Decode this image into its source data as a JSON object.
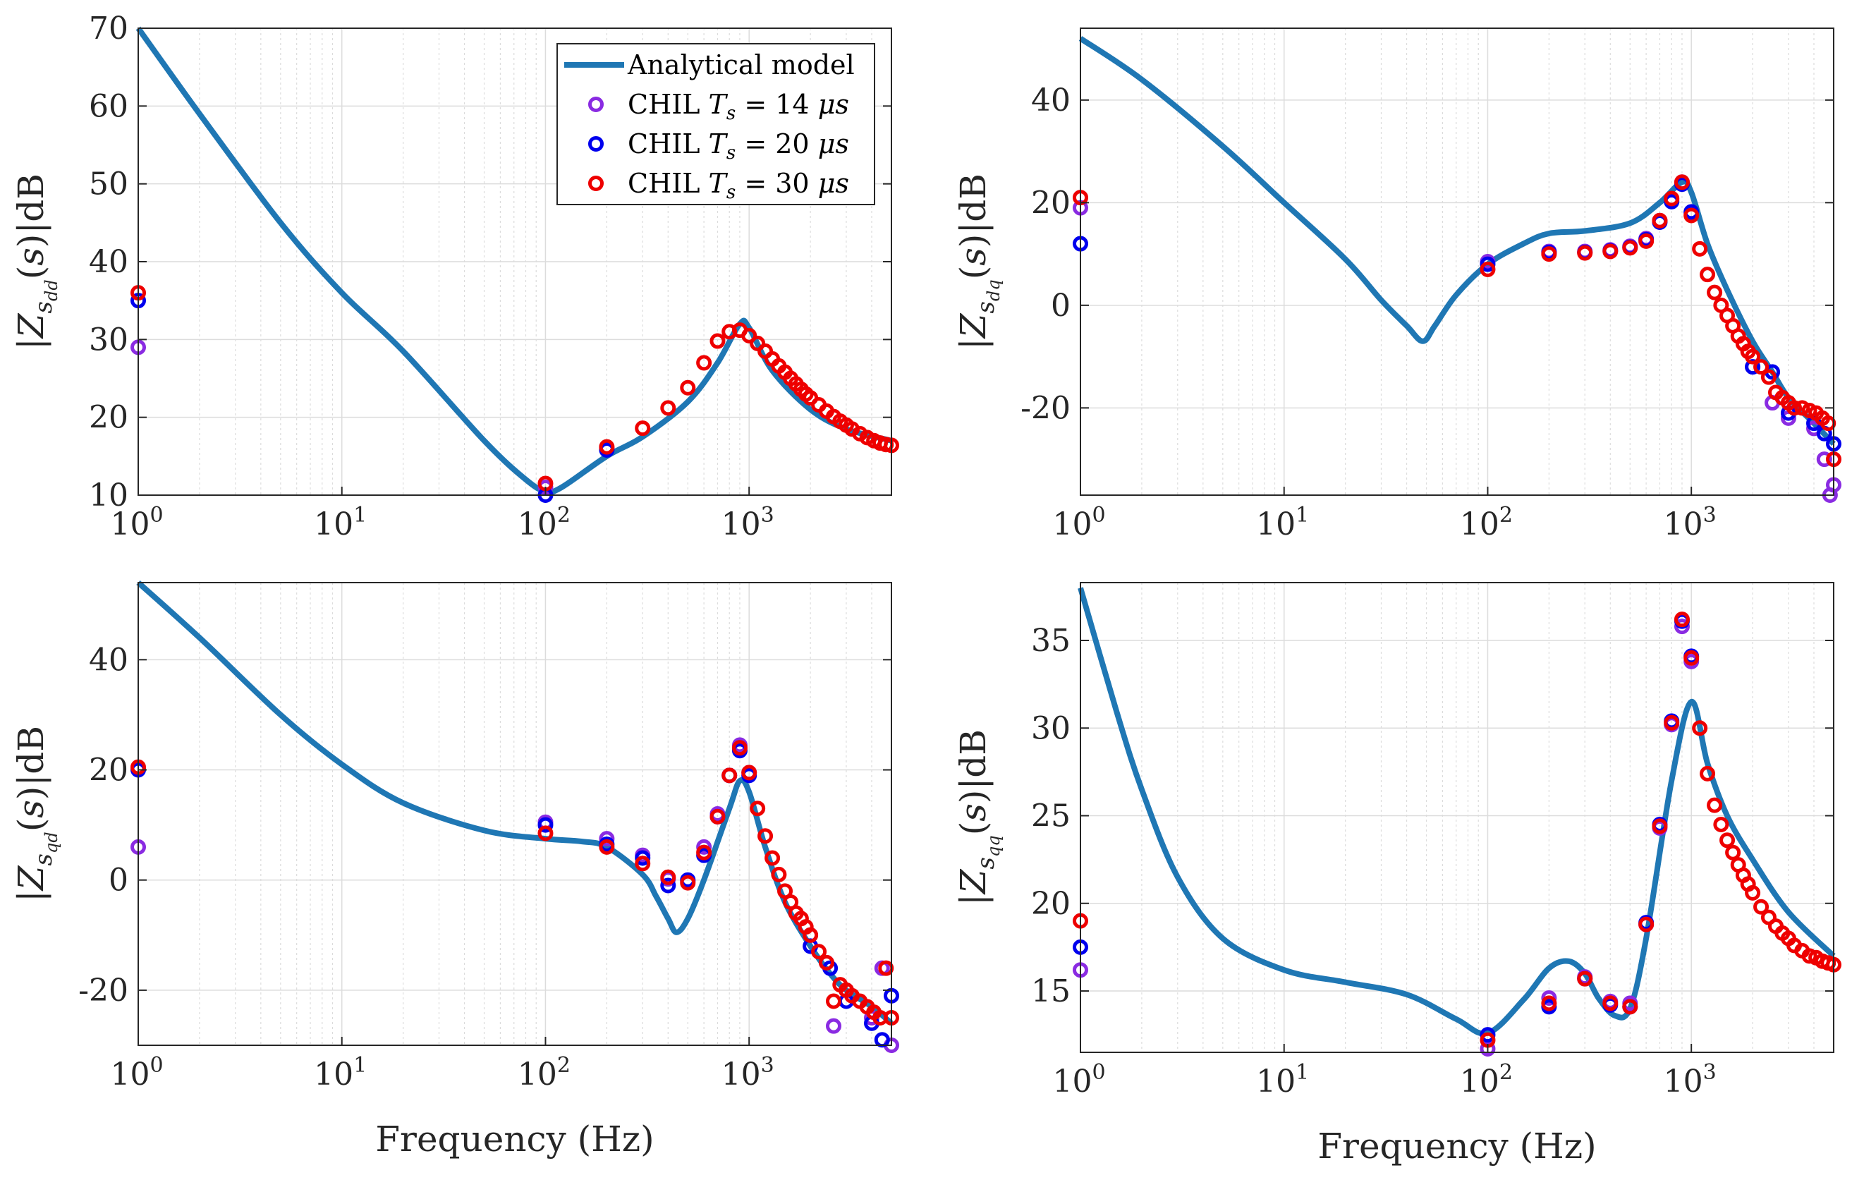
{
  "colors": {
    "model": "#1f77b4",
    "ts14": "#8a2be2",
    "ts20": "#0000ee",
    "ts30": "#ee0000",
    "grid": "#dcdcdc",
    "axis": "#262626"
  },
  "legend": {
    "model": "Analytical model",
    "ts14": "CHIL T_s = 14 μs",
    "ts20": "CHIL T_s = 20 μs",
    "ts30": "CHIL T_s = 30 μs"
  },
  "chart_data": [
    {
      "type": "scatter",
      "panel": "top-left",
      "ylabel": "|Z_sdd(s)|dB",
      "xlabel": "",
      "xscale": "log",
      "xlim": [
        1,
        5000
      ],
      "ylim": [
        10,
        70
      ],
      "yticks": [
        10,
        20,
        30,
        40,
        50,
        60,
        70
      ],
      "grid": true,
      "legend_position": "top-right",
      "model_curve": {
        "name": "Analytical model",
        "x": [
          1,
          2,
          5,
          10,
          20,
          50,
          80,
          100,
          120,
          200,
          300,
          500,
          700,
          900,
          1000,
          1300,
          2000,
          3000,
          5000
        ],
        "y": [
          70,
          59,
          45,
          36,
          28.5,
          17,
          12,
          10.5,
          11,
          15,
          17.5,
          22,
          27,
          32,
          31.5,
          26,
          21,
          18.5,
          17
        ]
      },
      "series": [
        {
          "name": "CHIL T_s = 14 μs",
          "x": [
            1,
            100,
            200
          ],
          "y": [
            29,
            11,
            16
          ]
        },
        {
          "name": "CHIL T_s = 20 μs",
          "x": [
            1,
            100,
            200
          ],
          "y": [
            35,
            10,
            15.8
          ]
        },
        {
          "name": "CHIL T_s = 30 μs",
          "x": [
            1,
            100,
            200,
            300,
            400,
            500,
            600,
            700,
            800,
            900,
            1000,
            1100,
            1200,
            1300,
            1400,
            1500,
            1600,
            1700,
            1800,
            1900,
            2000,
            2200,
            2400,
            2600,
            2800,
            3000,
            3200,
            3500,
            3800,
            4100,
            4400,
            4700,
            5000
          ],
          "y": [
            36,
            11.5,
            16.2,
            18.6,
            21.2,
            23.8,
            27,
            29.8,
            31,
            31.2,
            30.5,
            29.5,
            28.5,
            27.5,
            26.6,
            25.8,
            25,
            24.3,
            23.6,
            23,
            22.5,
            21.6,
            20.8,
            20.1,
            19.5,
            19,
            18.5,
            17.9,
            17.4,
            17,
            16.7,
            16.5,
            16.4
          ]
        }
      ]
    },
    {
      "type": "scatter",
      "panel": "top-right",
      "ylabel": "|Z_sdq(s)|dB",
      "xlabel": "",
      "xscale": "log",
      "xlim": [
        1,
        5000
      ],
      "ylim": [
        -37,
        54
      ],
      "yticks": [
        -20,
        0,
        20,
        40
      ],
      "grid": true,
      "model_curve": {
        "name": "Analytical model",
        "x": [
          1,
          2,
          5,
          10,
          20,
          30,
          40,
          48,
          55,
          70,
          100,
          150,
          200,
          300,
          500,
          700,
          900,
          1000,
          1200,
          1500,
          2000,
          2500,
          3000,
          4000,
          5000
        ],
        "y": [
          52,
          44,
          31,
          20,
          9,
          1,
          -4,
          -7,
          -4,
          2,
          8,
          12,
          14,
          14.5,
          16,
          20,
          24,
          22,
          12,
          3,
          -7,
          -13,
          -18,
          -23,
          -27
        ]
      },
      "series": [
        {
          "name": "CHIL T_s = 14 μs",
          "x": [
            1,
            100,
            200,
            300,
            400,
            500,
            600,
            700,
            800,
            900,
            1000,
            2000,
            2500,
            3000,
            4000,
            4500,
            4800,
            5000
          ],
          "y": [
            19,
            8.5,
            10.5,
            10.5,
            10.8,
            11.5,
            13,
            16.5,
            20.5,
            24,
            18,
            -12,
            -19,
            -22,
            -24,
            -30,
            -37,
            -35
          ]
        },
        {
          "name": "CHIL T_s = 20 μs",
          "x": [
            1,
            100,
            200,
            300,
            400,
            500,
            600,
            700,
            800,
            900,
            1000,
            2000,
            2500,
            3000,
            4000,
            4500,
            5000
          ],
          "y": [
            12,
            8,
            10.3,
            10.3,
            10.6,
            11.3,
            12.8,
            16.2,
            20.2,
            23.6,
            18.2,
            -12,
            -13,
            -21,
            -23,
            -25,
            -27
          ]
        },
        {
          "name": "CHIL T_s = 30 μs",
          "x": [
            1,
            100,
            200,
            300,
            400,
            500,
            600,
            700,
            800,
            900,
            1000,
            1100,
            1200,
            1300,
            1400,
            1500,
            1600,
            1700,
            1800,
            1900,
            2000,
            2200,
            2400,
            2600,
            2800,
            3000,
            3200,
            3500,
            3800,
            4100,
            4400,
            4700,
            5000
          ],
          "y": [
            21,
            7,
            10,
            10.2,
            10.5,
            11.2,
            12.5,
            16.5,
            20.8,
            24,
            17.5,
            11,
            6,
            2.5,
            0,
            -2,
            -4,
            -6,
            -7.5,
            -9,
            -10,
            -12,
            -14,
            -17,
            -18,
            -19,
            -20,
            -20,
            -20.5,
            -21,
            -22,
            -23,
            -30
          ]
        }
      ]
    },
    {
      "type": "scatter",
      "panel": "bottom-left",
      "ylabel": "|Z_sqd(s)|dB",
      "xlabel": "Frequency (Hz)",
      "xscale": "log",
      "xlim": [
        1,
        5000
      ],
      "ylim": [
        -30,
        54
      ],
      "yticks": [
        -20,
        0,
        20,
        40
      ],
      "grid": true,
      "model_curve": {
        "name": "Analytical model",
        "x": [
          1,
          2,
          5,
          10,
          20,
          50,
          100,
          150,
          200,
          300,
          350,
          400,
          440,
          500,
          600,
          800,
          900,
          1000,
          1200,
          1500,
          2000,
          2500,
          3000,
          4000,
          5000
        ],
        "y": [
          54,
          44,
          30,
          21,
          14,
          9,
          7.5,
          7,
          6,
          1,
          -3,
          -7,
          -9.5,
          -7,
          0,
          13,
          18,
          16,
          6,
          -4,
          -12,
          -17,
          -20,
          -23,
          -26
        ]
      },
      "series": [
        {
          "name": "CHIL T_s = 14 μs",
          "x": [
            1,
            100,
            200,
            300,
            400,
            500,
            600,
            700,
            800,
            900,
            1000,
            2000,
            2400,
            2600,
            3000,
            4000,
            4500,
            5000
          ],
          "y": [
            6,
            10.5,
            7.5,
            4.5,
            0.2,
            -0.2,
            6,
            12,
            19,
            24.5,
            19.5,
            -10,
            -15,
            -26.5,
            -20,
            -25,
            -16,
            -30
          ]
        },
        {
          "name": "CHIL T_s = 20 μs",
          "x": [
            1,
            100,
            200,
            300,
            400,
            500,
            600,
            700,
            800,
            900,
            1000,
            2000,
            2500,
            3000,
            4000,
            4500,
            5000
          ],
          "y": [
            20,
            10,
            6.5,
            4,
            -1,
            0,
            4.5,
            11.5,
            19,
            23.5,
            19,
            -12,
            -16,
            -22,
            -26,
            -29,
            -21
          ]
        },
        {
          "name": "CHIL T_s = 30 μs",
          "x": [
            1,
            100,
            200,
            300,
            400,
            500,
            600,
            700,
            800,
            900,
            1000,
            1100,
            1200,
            1300,
            1400,
            1500,
            1600,
            1700,
            1800,
            1900,
            2000,
            2200,
            2400,
            2600,
            2800,
            3000,
            3200,
            3500,
            3800,
            4100,
            4400,
            4700,
            5000
          ],
          "y": [
            20.5,
            8.5,
            6,
            3,
            0.5,
            -0.5,
            5,
            11.5,
            19,
            24,
            19.5,
            13,
            8,
            4,
            1,
            -2,
            -4,
            -6,
            -7,
            -8.5,
            -10,
            -13,
            -15,
            -22,
            -19,
            -20,
            -21,
            -22,
            -23,
            -24,
            -25,
            -16,
            -25
          ]
        }
      ]
    },
    {
      "type": "scatter",
      "panel": "bottom-right",
      "ylabel": "|Z_sqq(s)|dB",
      "xlabel": "Frequency (Hz)",
      "xscale": "log",
      "xlim": [
        1,
        5000
      ],
      "ylim": [
        11.5,
        38.3
      ],
      "yticks": [
        15,
        20,
        25,
        30,
        35
      ],
      "grid": true,
      "model_curve": {
        "name": "Analytical model",
        "x": [
          1,
          1.5,
          2,
          3,
          5,
          10,
          20,
          40,
          70,
          100,
          150,
          200,
          250,
          300,
          350,
          420,
          500,
          600,
          800,
          1000,
          1200,
          1500,
          2000,
          3000,
          5000
        ],
        "y": [
          38,
          31,
          26.5,
          21.5,
          18,
          16.2,
          15.5,
          14.8,
          13.4,
          12.6,
          14.5,
          16.3,
          16.7,
          16.0,
          14.6,
          13.6,
          14,
          18,
          27,
          31.5,
          28,
          25,
          22.5,
          19.5,
          17
        ]
      },
      "series": [
        {
          "name": "CHIL T_s = 14 μs",
          "x": [
            1,
            100,
            200,
            300,
            400,
            500,
            600,
            700,
            800,
            900,
            1000
          ],
          "y": [
            16.2,
            11.7,
            14.6,
            15.8,
            14.4,
            14.3,
            18.8,
            24.3,
            30.2,
            35.8,
            33.8
          ]
        },
        {
          "name": "CHIL T_s = 20 μs",
          "x": [
            1,
            100,
            200,
            300,
            400,
            500,
            600,
            700,
            800,
            900,
            1000
          ],
          "y": [
            17.5,
            12.5,
            14.1,
            15.7,
            14.2,
            14.1,
            18.9,
            24.5,
            30.4,
            36.1,
            34.1
          ]
        },
        {
          "name": "CHIL T_s = 30 μs",
          "x": [
            1,
            100,
            200,
            300,
            400,
            500,
            600,
            700,
            800,
            900,
            1000,
            1100,
            1200,
            1300,
            1400,
            1500,
            1600,
            1700,
            1800,
            1900,
            2000,
            2200,
            2400,
            2600,
            2800,
            3000,
            3200,
            3500,
            3800,
            4100,
            4400,
            4700,
            5000
          ],
          "y": [
            19,
            12.2,
            14.3,
            15.7,
            14.3,
            14.1,
            18.8,
            24.4,
            30.3,
            36.2,
            34,
            30,
            27.4,
            25.6,
            24.5,
            23.6,
            22.9,
            22.2,
            21.6,
            21.1,
            20.6,
            19.8,
            19.2,
            18.7,
            18.3,
            18,
            17.6,
            17.3,
            17,
            16.9,
            16.7,
            16.6,
            16.5
          ]
        }
      ]
    }
  ]
}
